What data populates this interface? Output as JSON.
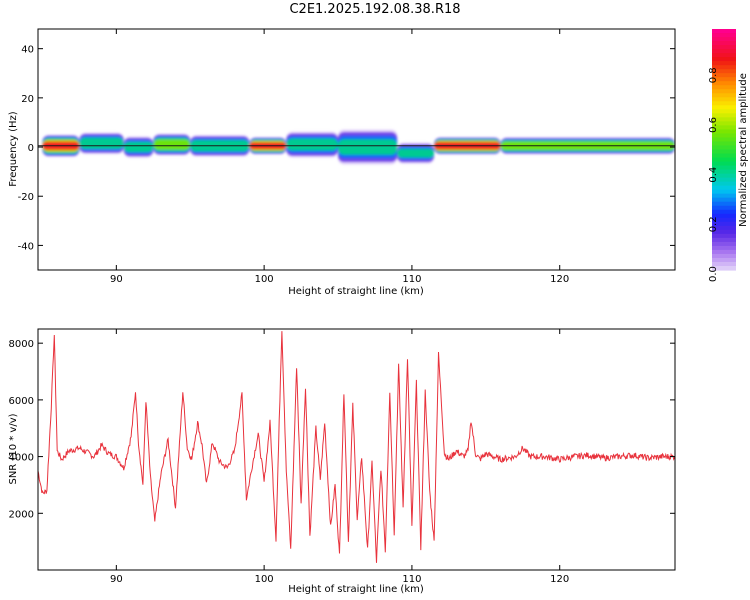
{
  "title": "C2E1.2025.192.08.38.R18",
  "chart_data": [
    {
      "type": "heatmap",
      "xlabel": "Height of straight line (km)",
      "ylabel": "Frequency (Hz)",
      "xlim": [
        84.7,
        127.8
      ],
      "ylim": [
        -50,
        48
      ],
      "xticks": [
        90,
        100,
        110,
        120
      ],
      "yticks": [
        -40,
        -20,
        0,
        20,
        40
      ],
      "colorbar": {
        "label": "Normalized spectral amplitude",
        "range": [
          0,
          0.97
        ],
        "ticks": [
          "0.0",
          "0.2",
          "0.4",
          "0.6",
          "0.8"
        ],
        "colormap": "rainbow"
      },
      "bands": [
        {
          "x0": 85.0,
          "x1": 87.5,
          "f_center": 0.5,
          "half_width": 4,
          "peak": 0.9
        },
        {
          "x0": 87.5,
          "x1": 90.5,
          "f_center": 1.5,
          "half_width": 4,
          "peak": 0.55
        },
        {
          "x0": 90.5,
          "x1": 92.5,
          "f_center": 0,
          "half_width": 4,
          "peak": 0.5
        },
        {
          "x0": 92.5,
          "x1": 95.0,
          "f_center": 1.0,
          "half_width": 4,
          "peak": 0.7
        },
        {
          "x0": 95.0,
          "x1": 99.0,
          "f_center": 0.5,
          "half_width": 4,
          "peak": 0.55
        },
        {
          "x0": 99.0,
          "x1": 101.5,
          "f_center": 0.5,
          "half_width": 3,
          "peak": 0.9
        },
        {
          "x0": 101.5,
          "x1": 105.0,
          "f_center": 1.0,
          "half_width": 5,
          "peak": 0.5
        },
        {
          "x0": 105.0,
          "x1": 109.0,
          "f_center": 0,
          "half_width": 7,
          "peak": 0.5
        },
        {
          "x0": 109.0,
          "x1": 111.5,
          "f_center": -2.5,
          "half_width": 4,
          "peak": 0.45
        },
        {
          "x0": 111.5,
          "x1": 116.0,
          "f_center": 0.5,
          "half_width": 3,
          "peak": 0.95
        },
        {
          "x0": 116.0,
          "x1": 127.8,
          "f_center": 0.5,
          "half_width": 3,
          "peak": 0.7
        }
      ]
    },
    {
      "type": "line",
      "xlabel": "Height of straight line (km)",
      "ylabel": "SNR (10 * v/v)",
      "xlim": [
        84.7,
        127.8
      ],
      "ylim": [
        0,
        8500
      ],
      "xticks": [
        90,
        100,
        110,
        120
      ],
      "yticks": [
        2000,
        4000,
        6000,
        8000
      ],
      "color": "#e8323c",
      "series": [
        {
          "x": [
            84.7,
            85.0,
            85.3,
            85.6,
            85.8,
            86.0,
            86.3,
            86.8,
            87.5,
            88.5,
            89.0,
            89.5,
            90.0,
            90.5,
            91.0,
            91.3,
            91.5,
            91.8,
            92.0,
            92.3,
            92.6,
            93.0,
            93.5,
            94.0,
            94.5,
            94.8,
            95.1,
            95.5,
            95.8,
            96.1,
            96.5,
            97.0,
            97.5,
            98.0,
            98.5,
            98.8,
            99.2,
            99.6,
            100.0,
            100.4,
            100.8,
            101.2,
            101.5,
            101.8,
            102.2,
            102.5,
            102.8,
            103.1,
            103.5,
            103.8,
            104.1,
            104.5,
            104.8,
            105.1,
            105.4,
            105.7,
            106.0,
            106.3,
            106.6,
            107.0,
            107.3,
            107.6,
            107.9,
            108.2,
            108.5,
            108.8,
            109.1,
            109.4,
            109.7,
            110.0,
            110.3,
            110.6,
            110.9,
            111.2,
            111.5,
            111.8,
            112.2,
            112.5,
            113.0,
            113.5,
            113.8,
            114.0,
            114.3,
            114.6,
            115.0,
            116.0,
            117.0,
            117.5,
            118.0,
            119.0,
            120.0,
            121.0,
            122.0,
            123.0,
            124.0,
            125.0,
            126.0,
            127.0,
            127.8
          ],
          "values": [
            3500,
            2700,
            2800,
            5800,
            8300,
            4200,
            3900,
            4200,
            4300,
            4000,
            4400,
            4100,
            4000,
            3600,
            4700,
            6300,
            4500,
            3000,
            6000,
            3300,
            1700,
            3300,
            4600,
            2200,
            6300,
            4300,
            3900,
            5200,
            4400,
            3000,
            4500,
            3800,
            3600,
            4200,
            6200,
            2500,
            3700,
            4800,
            3100,
            5200,
            1100,
            8500,
            3500,
            700,
            7200,
            2300,
            6500,
            1200,
            5000,
            3200,
            5200,
            1500,
            3000,
            500,
            6300,
            1000,
            5800,
            1800,
            4000,
            700,
            3800,
            300,
            3600,
            700,
            6300,
            1300,
            7200,
            2200,
            7500,
            1500,
            6600,
            800,
            6300,
            2800,
            1000,
            7600,
            4100,
            3900,
            4200,
            4000,
            4200,
            5300,
            4100,
            3900,
            4100,
            3900,
            4000,
            4300,
            4000,
            4000,
            3900,
            4000,
            4050,
            3950,
            4000,
            4050,
            3950,
            4000,
            4000
          ]
        }
      ]
    }
  ]
}
